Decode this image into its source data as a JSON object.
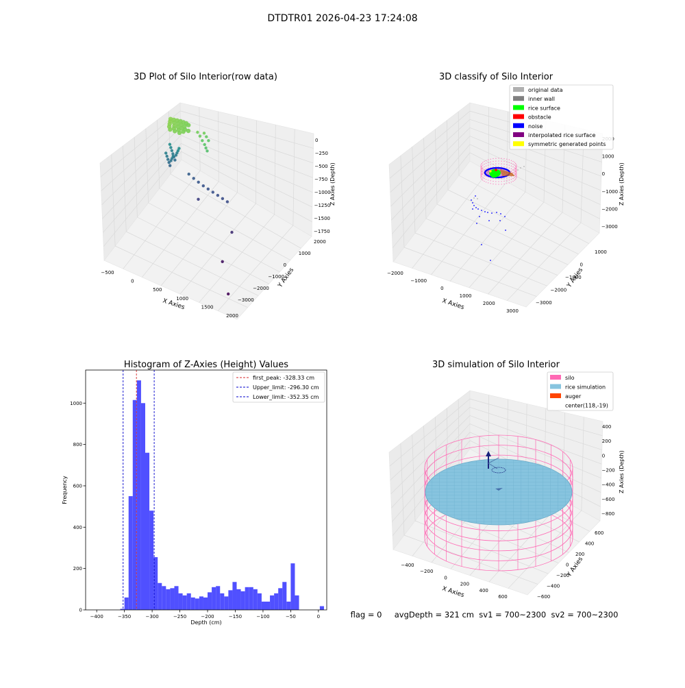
{
  "suptitle": "DTDTR01 2026-04-23 17:24:08",
  "status": {
    "text": "flag = 0     avgDepth = 321 cm  sv1 = 700~2300  sv2 = 700~2300"
  },
  "colors": {
    "histogram_bar": "#5050ff",
    "first_peak_line": "#d62728",
    "limit_line": "#0000cc",
    "silo_wire": "#ff69b4",
    "rice_simulation": "#87c4df",
    "auger": "#ff4500",
    "pane": "#f2f2f2",
    "grid": "#d9d9d9"
  },
  "chart_data": [
    {
      "type": "scatter",
      "projection": "3d",
      "title": "3D Plot of Silo Interior(row data)",
      "xlabel": "X Axies",
      "ylabel": "Y Axies",
      "zlabel": "Z Axies (Depth)",
      "xticks": [
        "−500",
        "0",
        "500",
        "1000",
        "1500",
        "2000"
      ],
      "yticks": [
        "2000",
        "1000",
        "0",
        "−1000",
        "−2000",
        "−3000"
      ],
      "zticks": [
        "0",
        "−250",
        "−500",
        "−750",
        "−1000",
        "−1250",
        "−1500",
        "−1750"
      ],
      "xlim": [
        -600,
        2000
      ],
      "ylim": [
        -3300,
        2000
      ],
      "zlim": [
        -1800,
        50
      ],
      "colormap": "viridis (by depth)",
      "series": [
        {
          "x": [
            -300,
            -250,
            -200,
            -150,
            -100,
            -50,
            0,
            -280,
            -220,
            -160,
            -100,
            -40,
            -260,
            -180,
            -120,
            -60,
            0,
            60,
            -240,
            -160,
            -80,
            0,
            -200,
            -120,
            -40
          ],
          "y": [
            200,
            250,
            300,
            350,
            380,
            400,
            380,
            100,
            150,
            200,
            230,
            250,
            0,
            40,
            80,
            110,
            140,
            160,
            -100,
            -60,
            -20,
            20,
            -180,
            -140,
            -100
          ],
          "z": [
            -280,
            -290,
            -300,
            -310,
            -320,
            -325,
            -330,
            -280,
            -295,
            -305,
            -315,
            -325,
            -285,
            -300,
            -310,
            -320,
            -330,
            -335,
            -290,
            -305,
            -315,
            -325,
            -300,
            -310,
            -320
          ]
        },
        {
          "x": [
            200,
            260,
            320,
            380,
            420,
            460,
            300,
            350,
            400
          ],
          "y": [
            300,
            250,
            200,
            150,
            100,
            50,
            400,
            380,
            350
          ],
          "z": [
            -350,
            -380,
            -420,
            -450,
            -480,
            -500,
            -360,
            -400,
            -440
          ]
        },
        {
          "x": [
            -400,
            -380,
            -360,
            -340,
            -320,
            -300,
            -280,
            -260,
            -240,
            -220,
            -420,
            -400,
            -380,
            -360,
            -340,
            -320,
            -300,
            -280
          ],
          "y": [
            500,
            500,
            500,
            500,
            500,
            500,
            500,
            500,
            500,
            500,
            300,
            300,
            300,
            300,
            300,
            300,
            300,
            300
          ],
          "z": [
            -900,
            -950,
            -1000,
            -1050,
            -1100,
            -1150,
            -1050,
            -1000,
            -950,
            -900,
            -1000,
            -1050,
            -1100,
            -1150,
            -1200,
            -1100,
            -1050,
            -1000
          ]
        },
        {
          "x": [
            0,
            100,
            200,
            300,
            400,
            500,
            600,
            700,
            800
          ],
          "y": [
            400,
            380,
            360,
            340,
            320,
            300,
            280,
            260,
            240
          ],
          "z": [
            -1250,
            -1280,
            -1300,
            -1320,
            -1330,
            -1340,
            -1350,
            -1360,
            -1370
          ]
        },
        {
          "x": [
            300,
            1100,
            1200,
            1600
          ],
          "y": [
            0,
            -500,
            -1500,
            -2500
          ],
          "z": [
            -1450,
            -1550,
            -1700,
            -1780
          ]
        }
      ]
    },
    {
      "type": "scatter",
      "projection": "3d",
      "title": "3D classify of Silo Interior",
      "xlabel": "X Axies",
      "ylabel": "Y Axies",
      "zlabel": "Z Axies (Depth)",
      "xticks": [
        "−2000",
        "−1000",
        "0",
        "1000",
        "2000",
        "3000"
      ],
      "yticks": [
        "1000",
        "0",
        "−1000",
        "−2000",
        "−3000"
      ],
      "zticks": [
        "2000",
        "1000",
        "0",
        "−1000",
        "−2000",
        "−3000"
      ],
      "legend": {
        "loc": "upper right",
        "entries": [
          {
            "label": "original data",
            "color": "#b0b0b0"
          },
          {
            "label": "inner wall",
            "color": "#808080"
          },
          {
            "label": "rice surface",
            "color": "#00ff00"
          },
          {
            "label": "obstacle",
            "color": "#ff0000"
          },
          {
            "label": "noise",
            "color": "#0000ff"
          },
          {
            "label": "interpolated rice surface",
            "color": "#800080"
          },
          {
            "label": "symmetric generated points",
            "color": "#ffff00"
          }
        ]
      }
    },
    {
      "type": "bar",
      "title": "Histogram of Z-Axies (Height) Values",
      "xlabel": "Depth (cm)",
      "ylabel": "Frequency",
      "xlim": [
        -420,
        15
      ],
      "ylim": [
        0,
        1160
      ],
      "xticks": [
        -400,
        -350,
        -300,
        -250,
        -200,
        -150,
        -100,
        -50,
        0
      ],
      "yticks": [
        0,
        200,
        400,
        600,
        800,
        1000
      ],
      "bin_width": 7.5,
      "bin_starts": [
        -357.5,
        -350,
        -342.5,
        -335,
        -327.5,
        -320,
        -312.5,
        -305,
        -297.5,
        -290,
        -282.5,
        -275,
        -267.5,
        -260,
        -252.5,
        -245,
        -237.5,
        -230,
        -222.5,
        -215,
        -207.5,
        -200,
        -192.5,
        -185,
        -177.5,
        -170,
        -162.5,
        -155,
        -147.5,
        -140,
        -132.5,
        -125,
        -117.5,
        -110,
        -102.5,
        -95,
        -87.5,
        -80,
        -72.5,
        -65,
        -57.5,
        -50,
        -42.5,
        -35,
        -27.5,
        -20,
        -12.5,
        -5,
        2.5
      ],
      "values": [
        5,
        60,
        550,
        1015,
        1110,
        1000,
        760,
        480,
        255,
        130,
        115,
        100,
        105,
        115,
        80,
        70,
        80,
        60,
        55,
        65,
        60,
        85,
        110,
        115,
        80,
        65,
        95,
        135,
        100,
        90,
        110,
        110,
        100,
        80,
        40,
        40,
        70,
        80,
        105,
        135,
        40,
        225,
        70,
        0,
        0,
        0,
        0,
        0,
        18
      ],
      "vlines": [
        {
          "x": -328.33,
          "style": "dashed",
          "color": "#d62728",
          "label": "first_peak: -328.33 cm"
        },
        {
          "x": -296.3,
          "style": "dashed",
          "color": "#0000cc",
          "label": "Upper_limit: -296.30 cm"
        },
        {
          "x": -352.35,
          "style": "dashed",
          "color": "#0000cc",
          "label": "Lower_limit: -352.35 cm"
        }
      ],
      "legend": {
        "loc": "upper right"
      }
    },
    {
      "type": "area",
      "projection": "3d",
      "title": "3D simulation of Silo Interior",
      "xlabel": "X Axies",
      "ylabel": "Y Axies",
      "zlabel": "Z Axies (Depth)",
      "xticks": [
        "−400",
        "−200",
        "0",
        "200",
        "400",
        "600"
      ],
      "yticks": [
        "600",
        "400",
        "200",
        "0",
        "−200",
        "−400",
        "−600"
      ],
      "zticks": [
        "400",
        "200",
        "0",
        "−200",
        "−400",
        "−600",
        "−800"
      ],
      "center": [
        118,
        -19
      ],
      "legend": {
        "loc": "upper right",
        "entries": [
          {
            "label": "silo",
            "color": "#ff69b4"
          },
          {
            "label": "rice simulation",
            "color": "#87c4df"
          },
          {
            "label": "auger",
            "color": "#ff4500"
          },
          {
            "label": "center(118,-19)",
            "color": ""
          }
        ]
      }
    }
  ]
}
